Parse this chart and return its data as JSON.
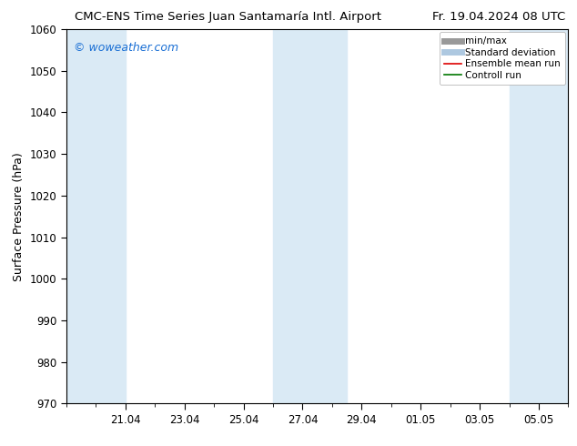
{
  "title_left": "CMC-ENS Time Series Juan Santamaría Intl. Airport",
  "title_right": "Fr. 19.04.2024 08 UTC",
  "ylabel": "Surface Pressure (hPa)",
  "ylim": [
    970,
    1060
  ],
  "yticks": [
    970,
    980,
    990,
    1000,
    1010,
    1020,
    1030,
    1040,
    1050,
    1060
  ],
  "x_tick_labels": [
    "21.04",
    "23.04",
    "25.04",
    "27.04",
    "29.04",
    "01.05",
    "03.05",
    "05.05"
  ],
  "x_tick_positions": [
    2,
    4,
    6,
    8,
    10,
    12,
    14,
    16
  ],
  "x_minor_positions": [
    1,
    3,
    5,
    7,
    9,
    11,
    13,
    15
  ],
  "xlim": [
    0,
    17
  ],
  "watermark": "© woweather.com",
  "watermark_color": "#1a6fd4",
  "shaded_bands": [
    {
      "x_start": 0.0,
      "x_end": 2.0
    },
    {
      "x_start": 7.0,
      "x_end": 9.5
    },
    {
      "x_start": 15.0,
      "x_end": 17.0
    }
  ],
  "shaded_color": "#daeaf5",
  "legend_entries": [
    {
      "label": "min/max",
      "color": "#999999",
      "lw": 5
    },
    {
      "label": "Standard deviation",
      "color": "#adc8e0",
      "lw": 5
    },
    {
      "label": "Ensemble mean run",
      "color": "#dd0000",
      "lw": 1.2
    },
    {
      "label": "Controll run",
      "color": "#007700",
      "lw": 1.2
    }
  ],
  "background_color": "#ffffff",
  "plot_bg_color": "#ffffff",
  "tick_color": "#000000",
  "title_fontsize": 9.5,
  "axis_label_fontsize": 9,
  "tick_fontsize": 8.5,
  "watermark_fontsize": 9,
  "legend_fontsize": 7.5
}
